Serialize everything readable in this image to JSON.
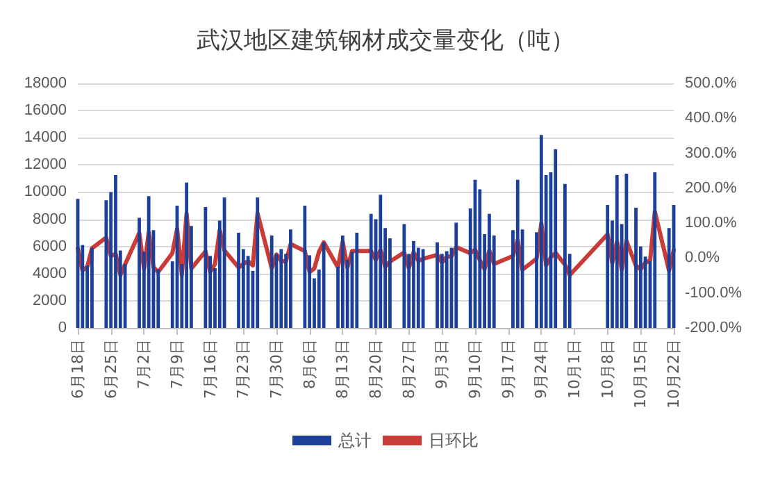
{
  "chart_data": {
    "type": "bar",
    "title": "武汉地区建筑钢材成交量变化（吨）",
    "x": [
      "--06-18",
      "--06-19",
      "--06-20",
      "--06-21",
      "--06-24",
      "--06-25",
      "--06-26",
      "--06-27",
      "--06-28",
      "--07-01",
      "--07-02",
      "--07-03",
      "--07-04",
      "--07-05",
      "--07-08",
      "--07-09",
      "--07-10",
      "--07-11",
      "--07-12",
      "--07-15",
      "--07-16",
      "--07-17",
      "--07-18",
      "--07-19",
      "--07-22",
      "--07-23",
      "--07-24",
      "--07-25",
      "--07-26",
      "--07-29",
      "--07-30",
      "--07-31",
      "--08-01",
      "--08-02",
      "--08-05",
      "--08-06",
      "--08-07",
      "--08-08",
      "--08-09",
      "--08-12",
      "--08-13",
      "--08-14",
      "--08-15",
      "--08-16",
      "--08-19",
      "--08-20",
      "--08-21",
      "--08-22",
      "--08-23",
      "--08-26",
      "--08-27",
      "--08-28",
      "--08-29",
      "--08-30",
      "--09-02",
      "--09-03",
      "--09-04",
      "--09-05",
      "--09-06",
      "--09-09",
      "--09-10",
      "--09-11",
      "--09-12",
      "--09-13",
      "--09-14",
      "--09-18",
      "--09-19",
      "--09-20",
      "--09-23",
      "--09-24",
      "--09-25",
      "--09-26",
      "--09-27",
      "--09-29",
      "--09-30",
      "--10-08",
      "--10-09",
      "--10-10",
      "--10-11",
      "--10-12",
      "--10-14",
      "--10-15",
      "--10-16",
      "--10-17",
      "--10-18",
      "--10-21",
      "--10-22"
    ],
    "series": [
      {
        "name": "总计",
        "color": "#1c3f9a",
        "values": [
          9500,
          6100,
          4600,
          5900,
          9400,
          10000,
          11250,
          5700,
          4700,
          8100,
          5600,
          9700,
          7200,
          4300,
          4900,
          9000,
          4700,
          10700,
          7500,
          8900,
          5300,
          4400,
          7900,
          9600,
          7000,
          5800,
          5300,
          4200,
          9600,
          6800,
          5450,
          5800,
          5450,
          7250,
          9000,
          5350,
          3650,
          4300,
          6300,
          4500,
          6800,
          5000,
          5600,
          7000,
          8400,
          8000,
          9800,
          7350,
          6600,
          7650,
          5450,
          6400,
          5900,
          5800,
          6300,
          5450,
          5650,
          5900,
          7750,
          8800,
          10900,
          10200,
          6900,
          8400,
          6800,
          7200,
          10900,
          7250,
          7050,
          14200,
          11250,
          11450,
          13150,
          10600,
          5450,
          9050,
          7900,
          11250,
          7650,
          11350,
          8850,
          6000,
          5250,
          4900,
          11450,
          7350,
          9050
        ]
      },
      {
        "name": "日环比",
        "type": "line",
        "axis": "y2",
        "color": "#c83b36",
        "values": [
          28,
          -36,
          -25,
          28,
          59,
          6,
          12,
          -49,
          -18,
          72,
          -31,
          74,
          -26,
          -40,
          14,
          84,
          -48,
          128,
          -30,
          19,
          -40,
          -17,
          80,
          22,
          -27,
          -17,
          -9,
          -21,
          128,
          -29,
          10,
          -8,
          -10,
          40,
          20,
          -40,
          -30,
          18,
          45,
          -27,
          47,
          -27,
          20,
          20,
          20,
          -5,
          23,
          -25,
          -10,
          16,
          -29,
          17,
          -8,
          -2,
          9,
          -13,
          4,
          5,
          31,
          14,
          24,
          -6,
          -32,
          22,
          -17,
          6,
          51,
          -33,
          -2,
          100,
          -21,
          2,
          15,
          -19,
          -49,
          68,
          -15,
          47,
          -33,
          49,
          -22,
          -32,
          -13,
          -7,
          133,
          -36,
          23
        ]
      }
    ],
    "xlim": [
      "--06-18",
      "--10-22"
    ],
    "xticks": [
      {
        "value": "--06-18",
        "label": "6月18日"
      },
      {
        "value": "--06-25",
        "label": "6月25日"
      },
      {
        "value": "--07-02",
        "label": "7月2日"
      },
      {
        "value": "--07-09",
        "label": "7月9日"
      },
      {
        "value": "--07-16",
        "label": "7月16日"
      },
      {
        "value": "--07-23",
        "label": "7月23日"
      },
      {
        "value": "--07-30",
        "label": "7月30日"
      },
      {
        "value": "--08-06",
        "label": "8月6日"
      },
      {
        "value": "--08-13",
        "label": "8月13日"
      },
      {
        "value": "--08-20",
        "label": "8月20日"
      },
      {
        "value": "--08-27",
        "label": "8月27日"
      },
      {
        "value": "--09-03",
        "label": "9月3日"
      },
      {
        "value": "--09-10",
        "label": "9月10日"
      },
      {
        "value": "--09-17",
        "label": "9月17日"
      },
      {
        "value": "--09-24",
        "label": "9月24日"
      },
      {
        "value": "--10-01",
        "label": "10月1日"
      },
      {
        "value": "--10-08",
        "label": "10月8日"
      },
      {
        "value": "--10-15",
        "label": "10月15日"
      },
      {
        "value": "--10-22",
        "label": "10月22日"
      }
    ],
    "ylim": [
      0,
      18000
    ],
    "yticks": [
      0,
      2000,
      4000,
      6000,
      8000,
      10000,
      12000,
      14000,
      16000,
      18000
    ],
    "y2lim": [
      -200,
      500
    ],
    "y2ticks": [
      {
        "value": -200,
        "label": "-200.0%"
      },
      {
        "value": -100,
        "label": "-100.0%"
      },
      {
        "value": 0,
        "label": "0.0%"
      },
      {
        "value": 100,
        "label": "100.0%"
      },
      {
        "value": 200,
        "label": "200.0%"
      },
      {
        "value": 300,
        "label": "300.0%"
      },
      {
        "value": 400,
        "label": "400.0%"
      },
      {
        "value": 500,
        "label": "500.0%"
      }
    ],
    "grid": "y",
    "legend": "bottom",
    "marker": "none",
    "line_style": "solid"
  }
}
